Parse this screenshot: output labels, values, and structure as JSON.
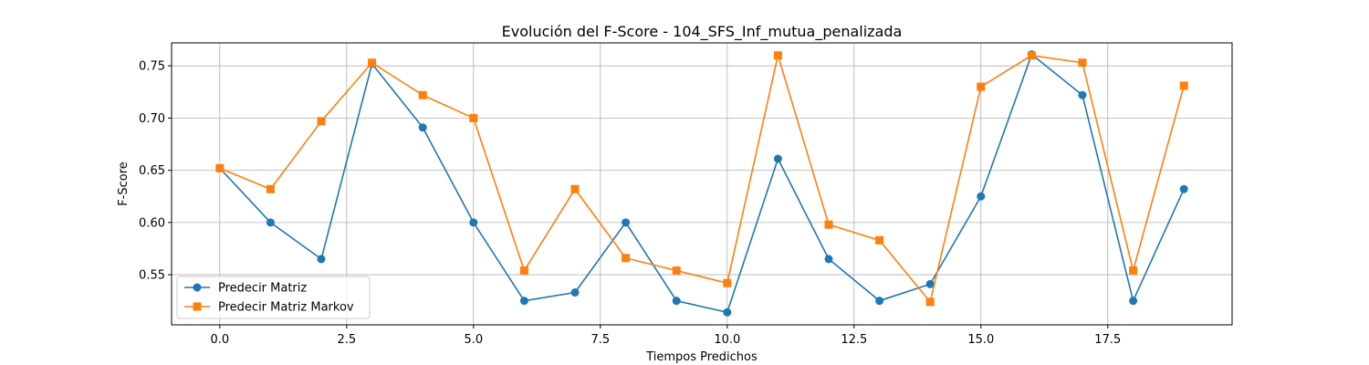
{
  "chart_data": {
    "type": "line",
    "title": "Evolución del F-Score - 104_SFS_Inf_mutua_penalizada",
    "xlabel": "Tiempos Predichos",
    "ylabel": "F-Score",
    "xlim": [
      -0.95,
      19.95
    ],
    "ylim": [
      0.502,
      0.772
    ],
    "xticks": [
      0.0,
      2.5,
      5.0,
      7.5,
      10.0,
      12.5,
      15.0,
      17.5
    ],
    "xtick_labels": [
      "0.0",
      "2.5",
      "5.0",
      "7.5",
      "10.0",
      "12.5",
      "15.0",
      "17.5"
    ],
    "yticks": [
      0.55,
      0.6,
      0.65,
      0.7,
      0.75
    ],
    "ytick_labels": [
      "0.55",
      "0.60",
      "0.65",
      "0.70",
      "0.75"
    ],
    "grid": true,
    "legend_position": "lower-left",
    "x": [
      0,
      1,
      2,
      3,
      4,
      5,
      6,
      7,
      8,
      9,
      10,
      11,
      12,
      13,
      14,
      15,
      16,
      17,
      18,
      19
    ],
    "series": [
      {
        "name": "Predecir Matriz",
        "color": "#1f77b4",
        "marker": "circle",
        "values": [
          0.652,
          0.6,
          0.565,
          0.752,
          0.691,
          0.6,
          0.525,
          0.533,
          0.6,
          0.525,
          0.514,
          0.661,
          0.565,
          0.525,
          0.541,
          0.625,
          0.761,
          0.722,
          0.525,
          0.632
        ]
      },
      {
        "name": "Predecir Matriz Markov",
        "color": "#ff7f0e",
        "marker": "square",
        "values": [
          0.652,
          0.632,
          0.697,
          0.753,
          0.722,
          0.7,
          0.554,
          0.632,
          0.566,
          0.554,
          0.542,
          0.76,
          0.598,
          0.583,
          0.524,
          0.73,
          0.76,
          0.753,
          0.554,
          0.731
        ]
      }
    ]
  }
}
